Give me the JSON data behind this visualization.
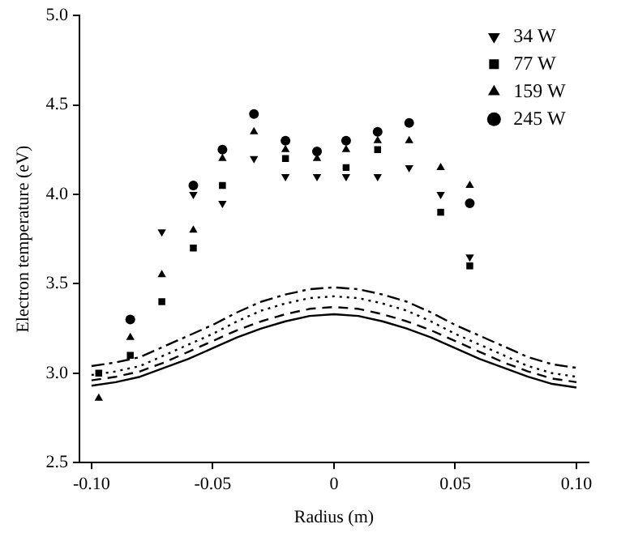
{
  "chart_data": {
    "type": "scatter",
    "xlabel": "Radius (m)",
    "ylabel": "Electron temperature (eV)",
    "xlim": [
      -0.105,
      0.105
    ],
    "xticks": [
      {
        "value": -0.1,
        "label": "-0.10"
      },
      {
        "value": -0.05,
        "label": "-0.05"
      },
      0,
      {
        "value": 0.05,
        "label": "0.05"
      },
      {
        "value": 0.1,
        "label": "0.10"
      }
    ],
    "ylim": [
      2.5,
      5.0
    ],
    "yticks": [
      2.5,
      {
        "value": 3,
        "label": "3.0"
      },
      3.5,
      {
        "value": 4,
        "label": "4.0"
      },
      4.5,
      {
        "value": 5,
        "label": "5.0"
      }
    ],
    "grid": false,
    "legend": "top right",
    "x": [
      -0.097,
      -0.084,
      -0.071,
      -0.058,
      -0.046,
      -0.033,
      -0.02,
      -0.007,
      0.005,
      0.018,
      0.031,
      0.044,
      0.056
    ],
    "series": [
      {
        "name": "34 W",
        "marker": "triangle-down",
        "color": "#000000",
        "values": [
          null,
          null,
          3.79,
          4.0,
          3.95,
          4.2,
          4.1,
          4.1,
          4.1,
          4.1,
          4.15,
          4.0,
          3.65
        ]
      },
      {
        "name": "77 W",
        "marker": "square",
        "color": "#000000",
        "values": [
          3.0,
          3.1,
          3.4,
          3.7,
          4.05,
          null,
          4.2,
          null,
          4.15,
          4.25,
          null,
          3.9,
          3.6
        ]
      },
      {
        "name": "159 W",
        "marker": "triangle",
        "color": "#000000",
        "values": [
          2.86,
          3.2,
          3.55,
          3.8,
          4.2,
          4.35,
          4.25,
          4.2,
          4.25,
          4.3,
          4.3,
          4.15,
          4.05
        ]
      },
      {
        "name": "245 W",
        "marker": "circle",
        "color": "#000000",
        "values": [
          null,
          3.3,
          null,
          4.05,
          4.25,
          4.45,
          4.3,
          4.24,
          4.3,
          4.35,
          4.4,
          null,
          3.95
        ]
      },
      {
        "type": "line",
        "line_style": "dashdot",
        "color": "#000000",
        "x": [
          -0.1,
          -0.09,
          -0.08,
          -0.07,
          -0.06,
          -0.05,
          -0.04,
          -0.03,
          -0.02,
          -0.01,
          0,
          0.01,
          0.02,
          0.03,
          0.04,
          0.05,
          0.06,
          0.07,
          0.08,
          0.09,
          0.1
        ],
        "values": [
          3.04,
          3.06,
          3.09,
          3.15,
          3.21,
          3.27,
          3.34,
          3.4,
          3.44,
          3.47,
          3.48,
          3.47,
          3.44,
          3.4,
          3.34,
          3.27,
          3.21,
          3.15,
          3.09,
          3.05,
          3.03
        ]
      },
      {
        "type": "line",
        "line_style": "dotted",
        "color": "#000000",
        "x": [
          -0.1,
          -0.09,
          -0.08,
          -0.07,
          -0.06,
          -0.05,
          -0.04,
          -0.03,
          -0.02,
          -0.01,
          0,
          0.01,
          0.02,
          0.03,
          0.04,
          0.05,
          0.06,
          0.07,
          0.08,
          0.09,
          0.1
        ],
        "values": [
          2.99,
          3.01,
          3.04,
          3.1,
          3.16,
          3.22,
          3.29,
          3.35,
          3.39,
          3.42,
          3.43,
          3.42,
          3.39,
          3.35,
          3.29,
          3.22,
          3.16,
          3.1,
          3.04,
          3.0,
          2.98
        ]
      },
      {
        "type": "line",
        "line_style": "dashed",
        "color": "#000000",
        "x": [
          -0.1,
          -0.09,
          -0.08,
          -0.07,
          -0.06,
          -0.05,
          -0.04,
          -0.03,
          -0.02,
          -0.01,
          0,
          0.01,
          0.02,
          0.03,
          0.04,
          0.05,
          0.06,
          0.07,
          0.08,
          0.09,
          0.1
        ],
        "values": [
          2.96,
          2.98,
          3.01,
          3.06,
          3.12,
          3.18,
          3.24,
          3.29,
          3.33,
          3.36,
          3.37,
          3.36,
          3.33,
          3.29,
          3.24,
          3.18,
          3.12,
          3.06,
          3.01,
          2.97,
          2.95
        ]
      },
      {
        "type": "line",
        "line_style": "solid",
        "color": "#000000",
        "x": [
          -0.1,
          -0.09,
          -0.08,
          -0.07,
          -0.06,
          -0.05,
          -0.04,
          -0.03,
          -0.02,
          -0.01,
          0,
          0.01,
          0.02,
          0.03,
          0.04,
          0.05,
          0.06,
          0.07,
          0.08,
          0.09,
          0.1
        ],
        "values": [
          2.93,
          2.95,
          2.98,
          3.03,
          3.08,
          3.14,
          3.2,
          3.25,
          3.29,
          3.32,
          3.33,
          3.32,
          3.29,
          3.25,
          3.2,
          3.14,
          3.08,
          3.03,
          2.98,
          2.94,
          2.92
        ]
      }
    ]
  }
}
